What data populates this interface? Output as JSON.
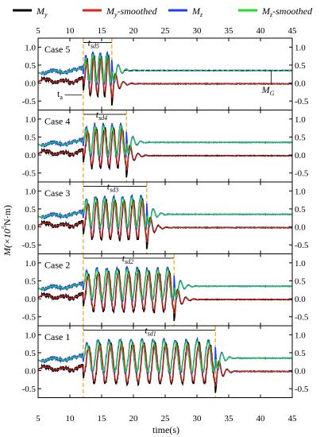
{
  "legend": [
    {
      "label": "M",
      "sub": "y",
      "suffix": "",
      "color": "#000000"
    },
    {
      "label": "M",
      "sub": "y",
      "suffix": "-smoothed",
      "color": "#e0201b"
    },
    {
      "label": "M",
      "sub": "z",
      "suffix": "",
      "color": "#1f3ff5"
    },
    {
      "label": "M",
      "sub": "z",
      "suffix": "-smoothed",
      "color": "#22e01f"
    }
  ],
  "xlabel": "time(s)",
  "ylabel_main": "M(×10",
  "ylabel_exp": "5",
  "ylabel_unit": "N·m)",
  "annotations": {
    "ta": "t",
    "ta_sub": "a",
    "mg": "M",
    "mg_sub": "G",
    "tsd": "t",
    "tsd_sub": "sd"
  },
  "colors": {
    "My": "#000000",
    "My_smoothed": "#e0201b",
    "Mz": "#1f3ff5",
    "Mz_smoothed": "#22e01f",
    "guide": "#f5a623",
    "axis": "#000000"
  },
  "chart_data": {
    "type": "line",
    "xlim": [
      5,
      45
    ],
    "x_ticks": [
      5,
      10,
      15,
      20,
      25,
      30,
      35,
      40,
      45
    ],
    "ylim": [
      -0.75,
      1.25
    ],
    "y_ticks": [
      -0.5,
      0.0,
      0.5,
      1.0
    ],
    "t_a": 12.1,
    "panels": [
      {
        "label": "Case 5",
        "t_sd_label": "5",
        "t_end": 16.6,
        "n_osc": 4,
        "M_G": 0.35
      },
      {
        "label": "Case 4",
        "t_sd_label": "4",
        "t_end": 18.9,
        "n_osc": 5,
        "M_G": 0.35
      },
      {
        "label": "Case 3",
        "t_sd_label": "3",
        "t_end": 22.1,
        "n_osc": 7,
        "M_G": 0.35
      },
      {
        "label": "Case 2",
        "t_sd_label": "2",
        "t_end": 26.4,
        "n_osc": 9,
        "M_G": 0.35
      },
      {
        "label": "Case 1",
        "t_sd_label": "1",
        "t_end": 32.9,
        "n_osc": 12,
        "M_G": 0.35
      }
    ]
  }
}
